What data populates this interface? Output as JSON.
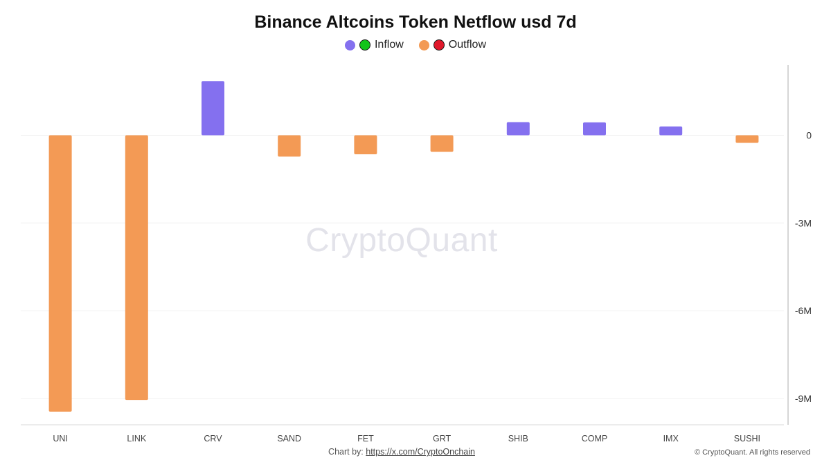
{
  "chart_data": {
    "type": "bar",
    "title": "Binance Altcoins Token Netflow usd 7d",
    "legend": [
      {
        "label": "Inflow",
        "colors": [
          "#8470ef",
          "#11c41a"
        ]
      },
      {
        "label": "Outflow",
        "colors": [
          "#f39a55",
          "#e0182b"
        ]
      }
    ],
    "legend_position": "top",
    "categories": [
      "UNI",
      "LINK",
      "CRV",
      "SAND",
      "FET",
      "GRT",
      "SHIB",
      "COMP",
      "IMX",
      "SUSHI"
    ],
    "values": [
      -9450000,
      -9050000,
      1850000,
      -730000,
      -650000,
      -570000,
      450000,
      440000,
      300000,
      -260000
    ],
    "yticks": [
      {
        "value": 0,
        "label": "0"
      },
      {
        "value": -3000000,
        "label": "-3M"
      },
      {
        "value": -6000000,
        "label": "-6M"
      },
      {
        "value": -9000000,
        "label": "-9M"
      }
    ],
    "ylim": [
      -9900000,
      2400000
    ],
    "y_axis_side": "right",
    "grid": true,
    "positive_color": "#8470ef",
    "negative_color": "#f39a55"
  },
  "watermark": "CryptoQuant",
  "footer": {
    "prefix": "Chart by:",
    "link": "https://x.com/CryptoOnchain",
    "copyright": "© CryptoQuant. All rights reserved"
  }
}
